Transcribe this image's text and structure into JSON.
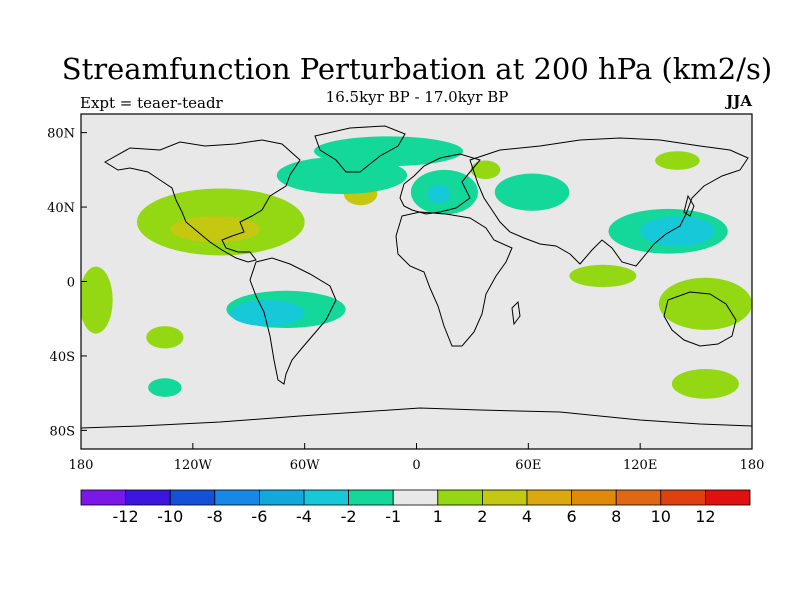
{
  "title": "Streamfunction Perturbation at 200 hPa (km2/s)",
  "subtitle": "16.5kyr BP - 17.0kyr BP",
  "experiment": "Expt = teaer-teadr",
  "season": "JJA",
  "colors": {
    "ocean_background": "#e8e8e8",
    "coastline": "#000000"
  },
  "chart_data": {
    "type": "heatmap",
    "projection": "cylindrical-equidistant",
    "lon_range": [
      -180,
      180
    ],
    "lat_range": [
      -90,
      90
    ],
    "x_ticks": [
      {
        "lon": -180,
        "label": "180"
      },
      {
        "lon": -120,
        "label": "120W"
      },
      {
        "lon": -60,
        "label": "60W"
      },
      {
        "lon": 0,
        "label": "0"
      },
      {
        "lon": 60,
        "label": "60E"
      },
      {
        "lon": 120,
        "label": "120E"
      },
      {
        "lon": 180,
        "label": "180"
      }
    ],
    "y_ticks": [
      {
        "lat": 80,
        "label": "80N"
      },
      {
        "lat": 40,
        "label": "40N"
      },
      {
        "lat": 0,
        "label": "0"
      },
      {
        "lat": -40,
        "label": "40S"
      },
      {
        "lat": -80,
        "label": "80S"
      }
    ],
    "colorbar": {
      "bins": [
        {
          "color": "#7b18e8",
          "label": ""
        },
        {
          "color": "#3a16e0",
          "label": "-12"
        },
        {
          "color": "#1450d8",
          "label": "-10"
        },
        {
          "color": "#1888e8",
          "label": "-8"
        },
        {
          "color": "#12a8dc",
          "label": "-6"
        },
        {
          "color": "#16c8d8",
          "label": "-4"
        },
        {
          "color": "#14d89a",
          "label": "-2"
        },
        {
          "color": "#e8e8e8",
          "label": "-1"
        },
        {
          "color": "#94d814",
          "label": "1"
        },
        {
          "color": "#c4c810",
          "label": "2"
        },
        {
          "color": "#dca810",
          "label": "4"
        },
        {
          "color": "#e08a0a",
          "label": "6"
        },
        {
          "color": "#e06812",
          "label": "8"
        },
        {
          "color": "#e04010",
          "label": "10"
        },
        {
          "color": "#e01010",
          "label": "12"
        }
      ]
    },
    "regions": [
      {
        "name": "n-america-positive",
        "level": 1,
        "color": "#94d814",
        "center": [
          -105,
          32
        ],
        "radius": [
          45,
          18
        ]
      },
      {
        "name": "n-america-positive-core",
        "level": 2,
        "color": "#c4c810",
        "center": [
          -108,
          28
        ],
        "radius": [
          24,
          7
        ]
      },
      {
        "name": "n-atlantic-positive",
        "level": 2,
        "color": "#c4c810",
        "center": [
          -30,
          47
        ],
        "radius": [
          9,
          6
        ]
      },
      {
        "name": "north-atlantic-negative",
        "level": -2,
        "color": "#14d89a",
        "center": [
          -40,
          57
        ],
        "radius": [
          35,
          10
        ]
      },
      {
        "name": "arctic-negative",
        "level": -2,
        "color": "#14d89a",
        "center": [
          -15,
          70
        ],
        "radius": [
          40,
          8
        ]
      },
      {
        "name": "europe-negative",
        "level": -2,
        "color": "#14d89a",
        "center": [
          15,
          48
        ],
        "radius": [
          18,
          12
        ]
      },
      {
        "name": "europe-negative-core",
        "level": -4,
        "color": "#16c8d8",
        "center": [
          12,
          47
        ],
        "radius": [
          6,
          5
        ]
      },
      {
        "name": "c-asia-negative",
        "level": -2,
        "color": "#14d89a",
        "center": [
          62,
          48
        ],
        "radius": [
          20,
          10
        ]
      },
      {
        "name": "siberia-positive",
        "level": 1,
        "color": "#94d814",
        "center": [
          37,
          60
        ],
        "radius": [
          8,
          5
        ]
      },
      {
        "name": "n-pacific-positive",
        "level": 1,
        "color": "#94d814",
        "center": [
          140,
          65
        ],
        "radius": [
          12,
          5
        ]
      },
      {
        "name": "w-pacific-negative",
        "level": -2,
        "color": "#14d89a",
        "center": [
          135,
          27
        ],
        "radius": [
          32,
          12
        ]
      },
      {
        "name": "w-pacific-negative-core",
        "level": -4,
        "color": "#16c8d8",
        "center": [
          140,
          27
        ],
        "radius": [
          20,
          8
        ]
      },
      {
        "name": "s-atlantic-negative",
        "level": -2,
        "color": "#14d89a",
        "center": [
          -70,
          -15
        ],
        "radius": [
          32,
          10
        ]
      },
      {
        "name": "s-atlantic-negative-core",
        "level": -4,
        "color": "#16c8d8",
        "center": [
          -80,
          -17
        ],
        "radius": [
          20,
          7
        ]
      },
      {
        "name": "s-pacific-positive",
        "level": 1,
        "color": "#94d814",
        "center": [
          -135,
          -30
        ],
        "radius": [
          10,
          6
        ]
      },
      {
        "name": "s-ocean-negative",
        "level": -2,
        "color": "#14d89a",
        "center": [
          -135,
          -57
        ],
        "radius": [
          9,
          5
        ]
      },
      {
        "name": "e-pacific-positive",
        "level": 1,
        "color": "#94d814",
        "center": [
          -172,
          -10
        ],
        "radius": [
          9,
          18
        ]
      },
      {
        "name": "australia-positive",
        "level": 1,
        "color": "#94d814",
        "center": [
          155,
          -12
        ],
        "radius": [
          25,
          14
        ]
      },
      {
        "name": "se-pacific-positive",
        "level": 1,
        "color": "#94d814",
        "center": [
          155,
          -55
        ],
        "radius": [
          18,
          8
        ]
      },
      {
        "name": "indian-positive",
        "level": 1,
        "color": "#94d814",
        "center": [
          100,
          3
        ],
        "radius": [
          18,
          6
        ]
      }
    ]
  }
}
